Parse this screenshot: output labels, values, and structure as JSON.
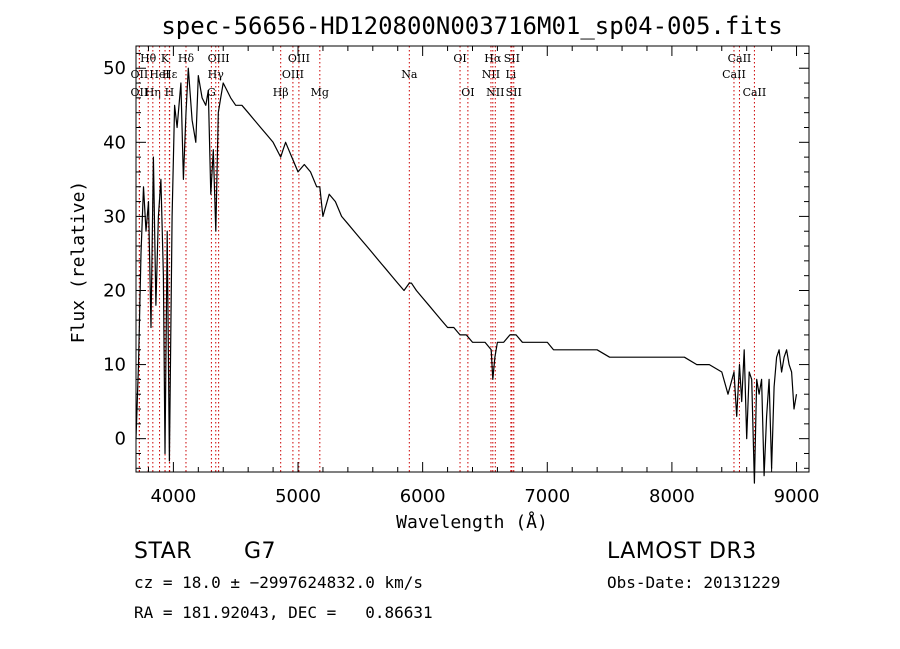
{
  "chart_data": {
    "type": "line",
    "title": "spec-56656-HD120800N003716M01_sp04-005.fits",
    "xlabel": "Wavelength (Å)",
    "ylabel": "Flux (relative)",
    "xlim": [
      3700,
      9100
    ],
    "ylim": [
      -4.5,
      53
    ],
    "xticks": [
      4000,
      5000,
      6000,
      7000,
      8000,
      9000
    ],
    "yticks": [
      0,
      10,
      20,
      30,
      40,
      50
    ],
    "xtick_labels": [
      "4000",
      "5000",
      "6000",
      "7000",
      "8000",
      "9000"
    ],
    "ytick_labels": [
      "0",
      "10",
      "20",
      "30",
      "40",
      "50"
    ],
    "series": [
      {
        "name": "Flux",
        "x": [
          3700,
          3720,
          3740,
          3760,
          3780,
          3800,
          3820,
          3840,
          3860,
          3880,
          3900,
          3920,
          3933,
          3950,
          3968,
          3990,
          4010,
          4030,
          4060,
          4080,
          4101,
          4120,
          4150,
          4180,
          4200,
          4230,
          4260,
          4280,
          4300,
          4320,
          4340,
          4360,
          4380,
          4400,
          4430,
          4460,
          4500,
          4550,
          4600,
          4650,
          4700,
          4750,
          4800,
          4861,
          4880,
          4900,
          4950,
          5000,
          5050,
          5100,
          5150,
          5175,
          5200,
          5250,
          5300,
          5350,
          5400,
          5450,
          5500,
          5550,
          5600,
          5650,
          5700,
          5750,
          5800,
          5850,
          5893,
          5910,
          5950,
          6000,
          6050,
          6100,
          6150,
          6200,
          6250,
          6300,
          6350,
          6400,
          6450,
          6500,
          6550,
          6563,
          6580,
          6600,
          6650,
          6700,
          6750,
          6800,
          6850,
          6900,
          6950,
          7000,
          7050,
          7100,
          7150,
          7200,
          7300,
          7400,
          7500,
          7600,
          7700,
          7800,
          7900,
          8000,
          8100,
          8200,
          8300,
          8400,
          8450,
          8498,
          8520,
          8542,
          8560,
          8580,
          8600,
          8620,
          8640,
          8662,
          8680,
          8700,
          8720,
          8740,
          8760,
          8780,
          8800,
          8820,
          8840,
          8860,
          8880,
          8900,
          8920,
          8940,
          8960,
          8980,
          9000
        ],
        "values": [
          0,
          10,
          25,
          34,
          28,
          32,
          15,
          38,
          18,
          30,
          35,
          22,
          -2,
          28,
          -3,
          30,
          45,
          42,
          48,
          35,
          44,
          50,
          43,
          40,
          49,
          46,
          45,
          47,
          33,
          39,
          28,
          44,
          46,
          48,
          47,
          46,
          45,
          45,
          44,
          43,
          42,
          41,
          40,
          38,
          39,
          40,
          38,
          36,
          37,
          36,
          34,
          34,
          30,
          33,
          32,
          30,
          29,
          28,
          27,
          26,
          25,
          24,
          23,
          22,
          21,
          20,
          21,
          21,
          20,
          19,
          18,
          17,
          16,
          15,
          15,
          14,
          14,
          13,
          13,
          13,
          12,
          8,
          11,
          13,
          13,
          14,
          14,
          13,
          13,
          13,
          13,
          13,
          12,
          12,
          12,
          12,
          12,
          12,
          11,
          11,
          11,
          11,
          11,
          11,
          11,
          10,
          10,
          9,
          6,
          9,
          3,
          10,
          5,
          12,
          0,
          9,
          8,
          -6,
          8,
          6,
          8,
          -5,
          3,
          8,
          -4,
          7,
          11,
          12,
          9,
          11,
          12,
          10,
          9,
          4,
          6
        ]
      }
    ],
    "emission_lines": [
      {
        "label": "OII",
        "wavelength": 3727,
        "row": 3
      },
      {
        "label": "Hθ",
        "wavelength": 3798,
        "row": 1
      },
      {
        "label": "OII",
        "wavelength": 3727,
        "row": 2
      },
      {
        "label": "Hη",
        "wavelength": 3835,
        "row": 3
      },
      {
        "label": "HeI",
        "wavelength": 3889,
        "row": 2
      },
      {
        "label": "K",
        "wavelength": 3933,
        "row": 1
      },
      {
        "label": "H",
        "wavelength": 3968,
        "row": 3
      },
      {
        "label": "Hε",
        "wavelength": 3970,
        "row": 2
      },
      {
        "label": "Hδ",
        "wavelength": 4101,
        "row": 1
      },
      {
        "label": "G",
        "wavelength": 4305,
        "row": 3
      },
      {
        "label": "OIII",
        "wavelength": 4363,
        "row": 1
      },
      {
        "label": "Hγ",
        "wavelength": 4340,
        "row": 2
      },
      {
        "label": "Hβ",
        "wavelength": 4861,
        "row": 3
      },
      {
        "label": "OIII",
        "wavelength": 4959,
        "row": 2
      },
      {
        "label": "OIII",
        "wavelength": 5007,
        "row": 1
      },
      {
        "label": "Mg",
        "wavelength": 5175,
        "row": 3
      },
      {
        "label": "Na",
        "wavelength": 5893,
        "row": 2
      },
      {
        "label": "OI",
        "wavelength": 6300,
        "row": 1
      },
      {
        "label": "OI",
        "wavelength": 6363,
        "row": 3
      },
      {
        "label": "NII",
        "wavelength": 6548,
        "row": 2
      },
      {
        "label": "Hα",
        "wavelength": 6563,
        "row": 1
      },
      {
        "label": "NII",
        "wavelength": 6583,
        "row": 3
      },
      {
        "label": "SII",
        "wavelength": 6716,
        "row": 1
      },
      {
        "label": "Li",
        "wavelength": 6708,
        "row": 2
      },
      {
        "label": "SII",
        "wavelength": 6731,
        "row": 3
      },
      {
        "label": "CaII",
        "wavelength": 8542,
        "row": 1
      },
      {
        "label": "CaII",
        "wavelength": 8498,
        "row": 2
      },
      {
        "label": "CaII",
        "wavelength": 8662,
        "row": 3
      }
    ],
    "colors": {
      "line": "#000000",
      "emission": "#cc0000",
      "axes": "#000000"
    }
  },
  "info": {
    "object_class": "STAR",
    "subclass": "G7",
    "survey": "LAMOST DR3",
    "cz": "cz = 18.0 ± −2997624832.0 km/s",
    "obs_date": "Obs-Date: 20131229",
    "coords": "RA = 181.92043, DEC =   0.86631"
  }
}
